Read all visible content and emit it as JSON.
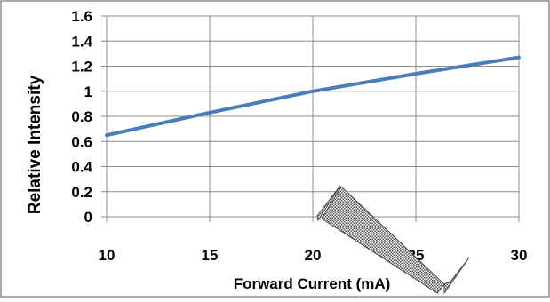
{
  "chart_data": {
    "type": "line",
    "title": "",
    "xlabel": "Forward Current (mA)",
    "ylabel": "Relative Intensity",
    "xlim": [
      10,
      30
    ],
    "ylim": [
      0,
      1.6
    ],
    "x_ticks": [
      10,
      15,
      20,
      25,
      30
    ],
    "y_ticks": [
      0,
      0.2,
      0.4,
      0.6,
      0.8,
      1,
      1.2,
      1.4,
      1.6
    ],
    "grid": true,
    "legend": "none",
    "series": [
      {
        "color": "#4a7ebb",
        "x": [
          10,
          15,
          20,
          25,
          30
        ],
        "y": [
          0.65,
          0.83,
          1.0,
          1.14,
          1.27
        ]
      }
    ]
  }
}
